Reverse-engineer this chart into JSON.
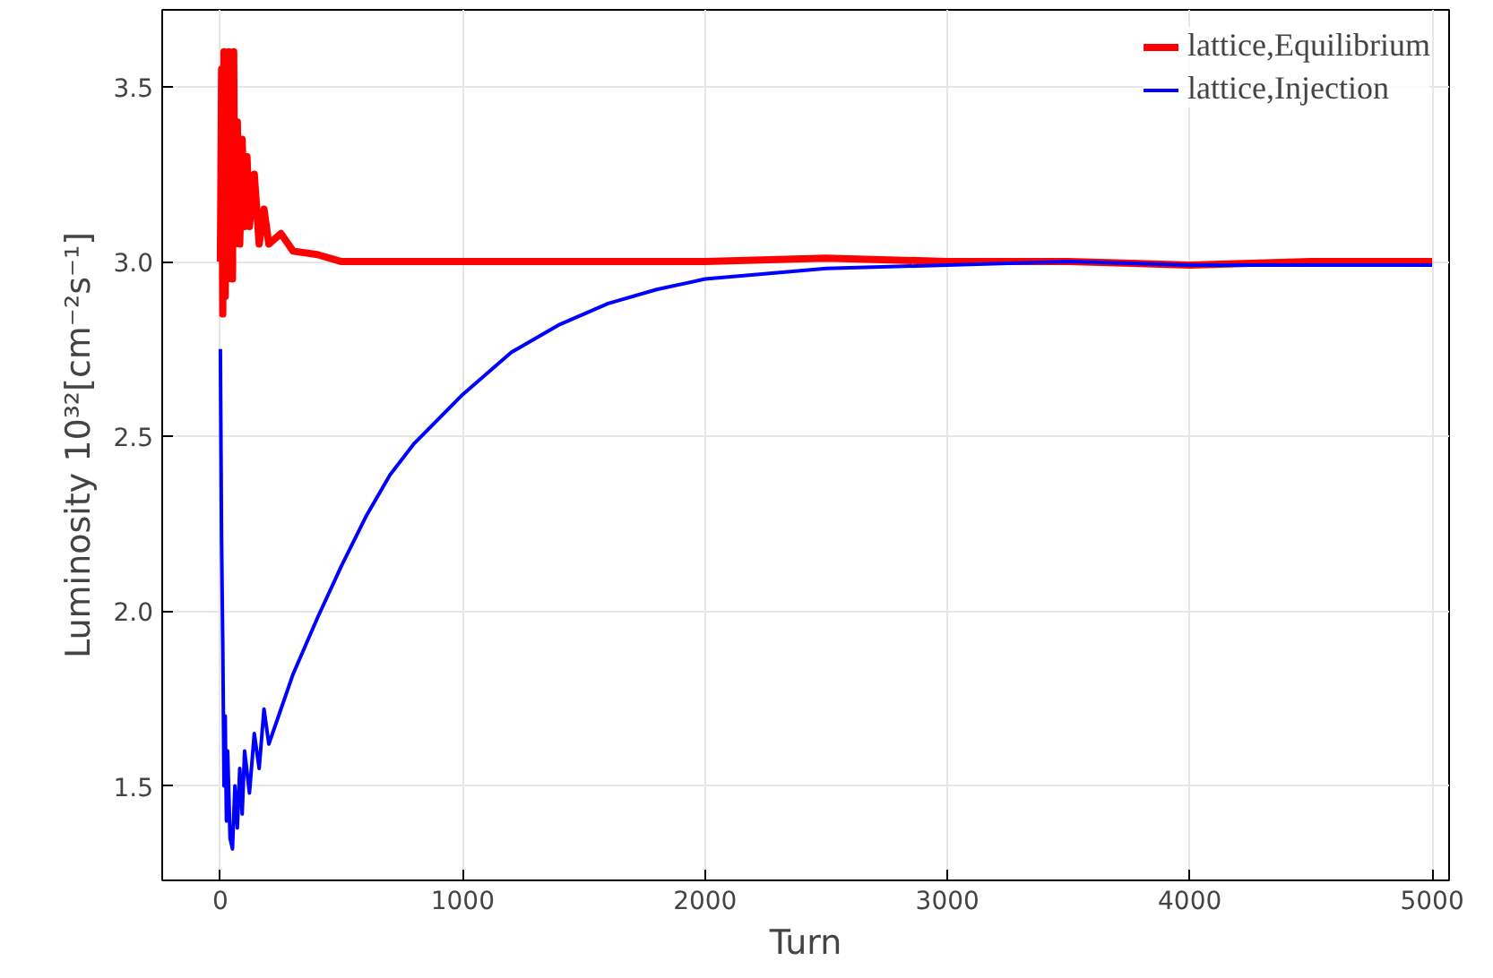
{
  "chart_data": {
    "type": "line",
    "xlabel": "Turn",
    "ylabel": "Luminosity 10³²[cm⁻²s⁻¹]",
    "xlim": [
      -240,
      5070
    ],
    "ylim": [
      1.23,
      3.72
    ],
    "xticks": [
      0,
      1000,
      2000,
      3000,
      4000,
      5000
    ],
    "yticks": [
      1.5,
      {
        "value": 2,
        "label": "2.0"
      },
      2.5,
      {
        "value": 3,
        "label": "3.0"
      },
      3.5
    ],
    "grid": true,
    "legend": "top right",
    "line_style": "solid",
    "series": [
      {
        "name": "lattice,Equilibrium",
        "color": "#ff0000",
        "x": [
          0,
          5,
          10,
          15,
          20,
          25,
          30,
          35,
          40,
          45,
          50,
          55,
          60,
          70,
          80,
          90,
          100,
          110,
          120,
          140,
          160,
          180,
          200,
          250,
          300,
          400,
          500,
          700,
          1000,
          1500,
          2000,
          2500,
          3000,
          3500,
          4000,
          4500,
          5000
        ],
        "values": [
          3.0,
          3.55,
          2.85,
          3.6,
          2.9,
          3.5,
          2.95,
          3.6,
          3.0,
          3.45,
          2.95,
          3.6,
          3.05,
          3.4,
          3.05,
          3.35,
          3.1,
          3.3,
          3.1,
          3.25,
          3.05,
          3.15,
          3.05,
          3.08,
          3.03,
          3.02,
          3.0,
          3.0,
          3.0,
          3.0,
          3.0,
          3.01,
          3.0,
          3.0,
          2.99,
          3.0,
          3.0
        ]
      },
      {
        "name": "lattice,Injection",
        "color": "#0000ff",
        "x": [
          0,
          5,
          10,
          15,
          20,
          25,
          30,
          40,
          50,
          60,
          70,
          80,
          90,
          100,
          120,
          140,
          160,
          180,
          200,
          250,
          300,
          400,
          500,
          600,
          700,
          800,
          1000,
          1200,
          1400,
          1600,
          1800,
          2000,
          2500,
          3000,
          3500,
          4000,
          4500,
          5000
        ],
        "values": [
          2.75,
          2.2,
          1.9,
          1.5,
          1.7,
          1.4,
          1.6,
          1.35,
          1.32,
          1.5,
          1.38,
          1.55,
          1.42,
          1.6,
          1.48,
          1.65,
          1.55,
          1.72,
          1.62,
          1.72,
          1.82,
          1.98,
          2.13,
          2.27,
          2.39,
          2.48,
          2.62,
          2.74,
          2.82,
          2.88,
          2.92,
          2.95,
          2.98,
          2.99,
          3.0,
          2.99,
          2.99,
          2.99
        ]
      }
    ]
  }
}
